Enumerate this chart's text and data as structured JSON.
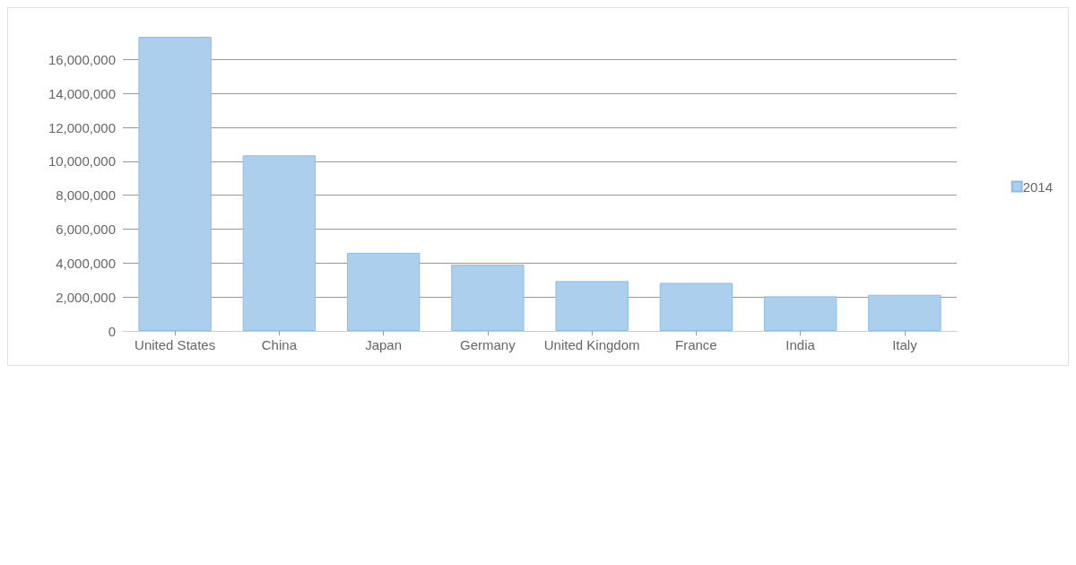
{
  "chart_data": {
    "type": "bar",
    "categories": [
      "United States",
      "China",
      "Japan",
      "Germany",
      "United Kingdom",
      "France",
      "India",
      "Italy"
    ],
    "series": [
      {
        "name": "2014",
        "color": "#abcfec",
        "values": [
          17340000,
          10350000,
          4600000,
          3910000,
          2940000,
          2830000,
          2040000,
          2130000
        ]
      }
    ],
    "ylim": [
      0,
      17340000
    ],
    "yticks": [
      0,
      {
        "value": 2000000,
        "label": "2,000,000"
      },
      {
        "value": 4000000,
        "label": "4,000,000"
      },
      {
        "value": 6000000,
        "label": "6,000,000"
      },
      {
        "value": 8000000,
        "label": "8,000,000"
      },
      {
        "value": 10000000,
        "label": "10,000,000"
      },
      {
        "value": 12000000,
        "label": "12,000,000"
      },
      {
        "value": 14000000,
        "label": "14,000,000"
      },
      {
        "value": 16000000,
        "label": "16,000,000"
      }
    ],
    "grid": "y",
    "legend": "right"
  }
}
